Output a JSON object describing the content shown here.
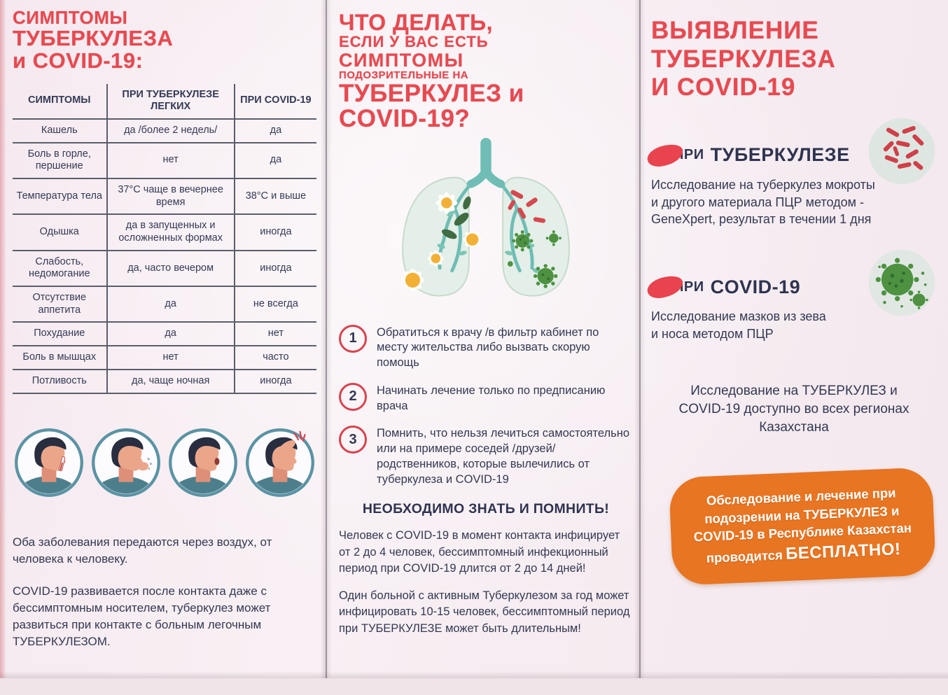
{
  "left_panel": {
    "title": {
      "line1": "СИМПТОМЫ",
      "line2": "ТУБЕРКУЛЕЗА",
      "line3": "и COVID-19:"
    },
    "table": {
      "headers": [
        "СИМПТОМЫ",
        "ПРИ ТУБЕРКУЛЕЗЕ ЛЕГКИХ",
        "ПРИ COVID-19"
      ],
      "rows": [
        [
          "Кашель",
          "да /более 2 недель/",
          "да"
        ],
        [
          "Боль в горле, першение",
          "нет",
          "да"
        ],
        [
          "Температура тела",
          "37°C чаще в вечернее время",
          "38°C и выше"
        ],
        [
          "Одышка",
          "да в запущенных и осложненных формах",
          "иногда"
        ],
        [
          "Слабость, недомогание",
          "да, часто вечером",
          "иногда"
        ],
        [
          "Отсутствие аппетита",
          "да",
          "не всегда"
        ],
        [
          "Похудание",
          "да",
          "нет"
        ],
        [
          "Боль в мышцах",
          "нет",
          "часто"
        ],
        [
          "Потливость",
          "да, чаще ночная",
          "иногда"
        ]
      ]
    },
    "symptom_icons": [
      "fever-thermometer",
      "coughing",
      "sore-throat",
      "headache"
    ],
    "paragraph1": "Оба заболевания передаются через воздух, от человека к человеку.",
    "paragraph2": "COVID-19 развивается после контакта даже с бессимптомным носителем, туберкулез может развиться при контакте с больным легочным ТУБЕРКУЛЕЗОМ."
  },
  "middle_panel": {
    "title": {
      "line1": "ЧТО ДЕЛАТЬ,",
      "line2": "ЕСЛИ У ВАС ЕСТЬ",
      "line3": "СИМПТОМЫ",
      "line4": "ПОДОЗРИТЕЛЬНЫЕ НА",
      "line5": "ТУБЕРКУЛЕЗ и",
      "line6": "COVID-19?"
    },
    "steps": [
      {
        "num": "1",
        "text": "Обратиться к врачу /в фильтр кабинет по месту жительства либо вызвать скорую помощь"
      },
      {
        "num": "2",
        "text": "Начинать лечение только по предписанию врача"
      },
      {
        "num": "3",
        "text": "Помнить, что нельзя лечиться самостоятельно или на примере соседей /друзей/ родственников, которые вылечились от туберкулеза и COVID-19"
      }
    ],
    "know_heading": "НЕОБХОДИМО ЗНАТЬ И ПОМНИТЬ!",
    "know_paragraph1": "Человек с COVID-19 в момент контакта инфицирует от 2 до 4 человек, бессимптомный инфекционный период при COVID-19 длится от 2 до 14 дней!",
    "know_paragraph2": "Один больной с активным Туберкулезом за год может инфицировать 10-15 человек, бессимптомный период при ТУБЕРКУЛЕЗЕ может быть длительным!"
  },
  "right_panel": {
    "title": {
      "line1": "ВЫЯВЛЕНИЕ",
      "line2": "ТУБЕРКУЛЕЗА",
      "line3": "И COVID-19"
    },
    "tb_section": {
      "prefix": "ПРИ",
      "name": "ТУБЕРКУЛЕЗЕ",
      "body": "Исследование на туберкулез мокроты и другого материала ПЦР методом - GeneXpert, результат в течении 1 дня"
    },
    "covid_section": {
      "prefix": "ПРИ",
      "name": "COVID-19",
      "body": "Исследование мазков из зева и носа методом ПЦР"
    },
    "availability": "Исследование на ТУБЕРКУЛЕЗ и COVID-19 доступно во всех регионах Казахстана",
    "free_badge": {
      "text": "Обследование и лечение при подозрении на ТУБЕРКУЛЕЗ и COVID-19 в Республике Казахстан проводится",
      "highlight": "БЕСПЛАТНО!"
    }
  },
  "colors": {
    "accent_red": "#e64a51",
    "navy_text": "#333853",
    "orange_badge": "#e87522",
    "teal_ring": "#5b93a4",
    "bacteria_red": "#d5484f",
    "virus_green": "#4d9141"
  }
}
